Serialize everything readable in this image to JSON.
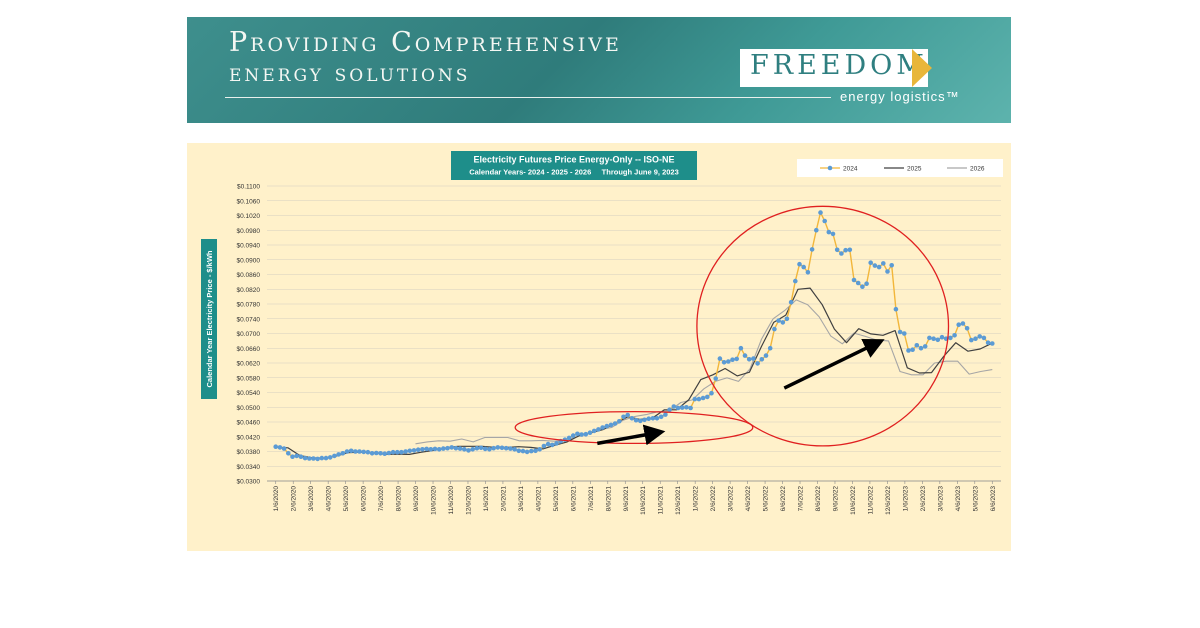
{
  "banner": {
    "headline_line1": "Providing Comprehensive",
    "headline_line2": "energy solutions",
    "logo_word": "FREEDOM",
    "logo_sub": "energy logistics™"
  },
  "colors": {
    "banner_teal": "#3e8f8d",
    "chart_background": "#fff1ca",
    "title_box": "#1e8e8a",
    "series_2024_line": "#f2b63a",
    "series_2024_markers": "#5b9bd5",
    "series_2025": "#404040",
    "series_2026": "#a6a6a6",
    "highlight_circle": "#e02020"
  },
  "chart_data": {
    "type": "line",
    "title": "Electricity Futures Price Energy-Only -- ISO-NE",
    "subtitle": "Calendar Years- 2024 - 2025 - 2026     Through June 9, 2023",
    "ylabel": "Calendar Year Electricity Price - $/kWh",
    "xlabel": "",
    "ylim": [
      0.03,
      0.11
    ],
    "y_ticks": [
      "$0.0300",
      "$0.0340",
      "$0.0380",
      "$0.0420",
      "$0.0460",
      "$0.0500",
      "$0.0540",
      "$0.0580",
      "$0.0620",
      "$0.0660",
      "$0.0700",
      "$0.0740",
      "$0.0780",
      "$0.0820",
      "$0.0860",
      "$0.0900",
      "$0.0940",
      "$0.0980",
      "$0.1020",
      "$0.1060",
      "$0.1100"
    ],
    "x_ticks": [
      "1/6/2020",
      "2/6/2020",
      "3/6/2020",
      "4/6/2020",
      "5/6/2020",
      "6/6/2020",
      "7/6/2020",
      "8/6/2020",
      "9/6/2020",
      "10/6/2020",
      "11/6/2020",
      "12/6/2020",
      "1/6/2021",
      "2/6/2021",
      "3/6/2021",
      "4/6/2021",
      "5/6/2021",
      "6/6/2021",
      "7/6/2021",
      "8/6/2021",
      "9/6/2021",
      "10/6/2021",
      "11/6/2021",
      "12/6/2021",
      "1/6/2022",
      "2/6/2022",
      "3/6/2022",
      "4/6/2022",
      "5/6/2022",
      "6/6/2022",
      "7/6/2022",
      "8/6/2022",
      "9/6/2022",
      "10/6/2022",
      "11/6/2022",
      "12/6/2022",
      "1/6/2023",
      "2/6/2023",
      "3/6/2023",
      "4/6/2023",
      "5/6/2023",
      "6/6/2023"
    ],
    "legend_position": "top-right",
    "grid": true,
    "series": [
      {
        "name": "2024",
        "start_month": 0,
        "values": [
          0.0393,
          0.0391,
          0.0388,
          0.0375,
          0.0366,
          0.0368,
          0.0366,
          0.0362,
          0.0361,
          0.0361,
          0.036,
          0.0362,
          0.0362,
          0.0364,
          0.0368,
          0.0372,
          0.0375,
          0.038,
          0.0382,
          0.038,
          0.038,
          0.0379,
          0.0378,
          0.0375,
          0.0376,
          0.0375,
          0.0374,
          0.0376,
          0.0378,
          0.0378,
          0.0378,
          0.038,
          0.0382,
          0.0383,
          0.0385,
          0.0386,
          0.0387,
          0.0386,
          0.0387,
          0.0386,
          0.0388,
          0.0389,
          0.0391,
          0.0389,
          0.0388,
          0.0386,
          0.0383,
          0.0386,
          0.0389,
          0.039,
          0.0387,
          0.0386,
          0.0389,
          0.0391,
          0.039,
          0.0389,
          0.0388,
          0.0386,
          0.0382,
          0.0381,
          0.0379,
          0.0381,
          0.0382,
          0.0386,
          0.0395,
          0.04,
          0.0398,
          0.0402,
          0.0408,
          0.0412,
          0.0417,
          0.0423,
          0.0428,
          0.0426,
          0.0427,
          0.0431,
          0.0436,
          0.044,
          0.0445,
          0.0449,
          0.0452,
          0.0456,
          0.0462,
          0.0474,
          0.0479,
          0.047,
          0.0465,
          0.0463,
          0.0466,
          0.0469,
          0.047,
          0.047,
          0.0474,
          0.048,
          0.0493,
          0.0502,
          0.0498,
          0.0499,
          0.05,
          0.0498,
          0.0522,
          0.0522,
          0.0525,
          0.0528,
          0.0538,
          0.0578,
          0.0632,
          0.0622,
          0.0624,
          0.0629,
          0.0631,
          0.066,
          0.064,
          0.063,
          0.0632,
          0.0619,
          0.063,
          0.064,
          0.066,
          0.0712,
          0.0735,
          0.073,
          0.074,
          0.0785,
          0.0842,
          0.0888,
          0.088,
          0.0866,
          0.0928,
          0.098,
          0.1028,
          0.1005,
          0.0975,
          0.097,
          0.0927,
          0.0917,
          0.0926,
          0.0927,
          0.0845,
          0.0837,
          0.0827,
          0.0835,
          0.0892,
          0.0884,
          0.088,
          0.089,
          0.0868,
          0.0885,
          0.0766,
          0.0704,
          0.07,
          0.0654,
          0.0656,
          0.0668,
          0.066,
          0.0665,
          0.0688,
          0.0686,
          0.0683,
          0.069,
          0.0686,
          0.0688,
          0.0695,
          0.0724,
          0.0727,
          0.0714,
          0.0682,
          0.0686,
          0.0692,
          0.0688,
          0.0675,
          0.0673
        ]
      },
      {
        "name": "2025",
        "start_month": 0,
        "values": [
          0.0392,
          0.039,
          0.0369,
          0.0363,
          0.0362,
          0.0368,
          0.0377,
          0.0378,
          0.0377,
          0.0372,
          0.0373,
          0.0372,
          0.0378,
          0.0383,
          0.039,
          0.0394,
          0.0394,
          0.0394,
          0.0391,
          0.0391,
          0.0393,
          0.0391,
          0.0387,
          0.0397,
          0.0406,
          0.0423,
          0.0431,
          0.044,
          0.0458,
          0.0474,
          0.0467,
          0.047,
          0.0493,
          0.0493,
          0.052,
          0.0575,
          0.0588,
          0.0605,
          0.0585,
          0.0595,
          0.0665,
          0.073,
          0.075,
          0.082,
          0.0823,
          0.0778,
          0.0712,
          0.0675,
          0.0713,
          0.0699,
          0.0695,
          0.0708,
          0.0607,
          0.0593,
          0.0594,
          0.0638,
          0.0675,
          0.0652,
          0.0658,
          0.0674
        ]
      },
      {
        "name": "2026",
        "start_month": 8,
        "values": [
          0.0401,
          0.0406,
          0.0409,
          0.0408,
          0.0414,
          0.0406,
          0.0418,
          0.0418,
          0.0418,
          0.0409,
          0.0409,
          0.041,
          0.0408,
          0.041,
          0.042,
          0.043,
          0.044,
          0.0445,
          0.0465,
          0.0475,
          0.048,
          0.0488,
          0.049,
          0.0513,
          0.052,
          0.055,
          0.057,
          0.058,
          0.057,
          0.0604,
          0.0685,
          0.074,
          0.0762,
          0.0791,
          0.0778,
          0.0745,
          0.0693,
          0.0672,
          0.0701,
          0.0692,
          0.0682,
          0.068,
          0.0597,
          0.0588,
          0.0588,
          0.062,
          0.0625,
          0.0625,
          0.059,
          0.0597,
          0.0602
        ]
      }
    ],
    "annotations": [
      {
        "type": "ellipse",
        "center_month": 20.5,
        "center_value": 0.0445,
        "radius_months": 6.8,
        "radius_value": 0.0043
      },
      {
        "type": "ellipse",
        "center_month": 31.3,
        "center_value": 0.072,
        "radius_months": 7.2,
        "radius_value": 0.0325
      },
      {
        "type": "arrow",
        "from_month": 18.4,
        "from_value": 0.0402,
        "to_month": 21.7,
        "to_value": 0.043
      },
      {
        "type": "arrow",
        "from_month": 29.1,
        "from_value": 0.0552,
        "to_month": 34.3,
        "to_value": 0.0672
      }
    ]
  }
}
